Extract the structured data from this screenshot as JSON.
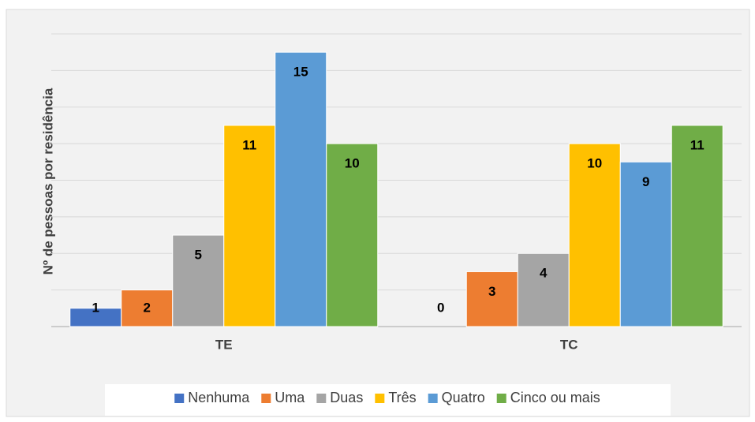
{
  "chart_data": {
    "type": "bar",
    "y_label": "Nº de pessoas por residência",
    "categories": [
      "TE",
      "TC"
    ],
    "series": [
      {
        "name": "Nenhuma",
        "color": "#4472c4",
        "values": [
          1,
          0
        ]
      },
      {
        "name": "Uma",
        "color": "#ed7d31",
        "values": [
          2,
          3
        ]
      },
      {
        "name": "Duas",
        "color": "#a5a5a5",
        "values": [
          5,
          4
        ]
      },
      {
        "name": "Três",
        "color": "#ffc000",
        "values": [
          11,
          10
        ]
      },
      {
        "name": "Quatro",
        "color": "#5b9bd5",
        "values": [
          15,
          9
        ]
      },
      {
        "name": "Cinco ou mais",
        "color": "#70ad47",
        "values": [
          10,
          11
        ]
      }
    ],
    "ylim": [
      0,
      16
    ],
    "yticks": [
      0,
      2,
      4,
      6,
      8,
      10,
      12,
      14,
      16
    ],
    "grid": true,
    "legend": "bottom"
  }
}
